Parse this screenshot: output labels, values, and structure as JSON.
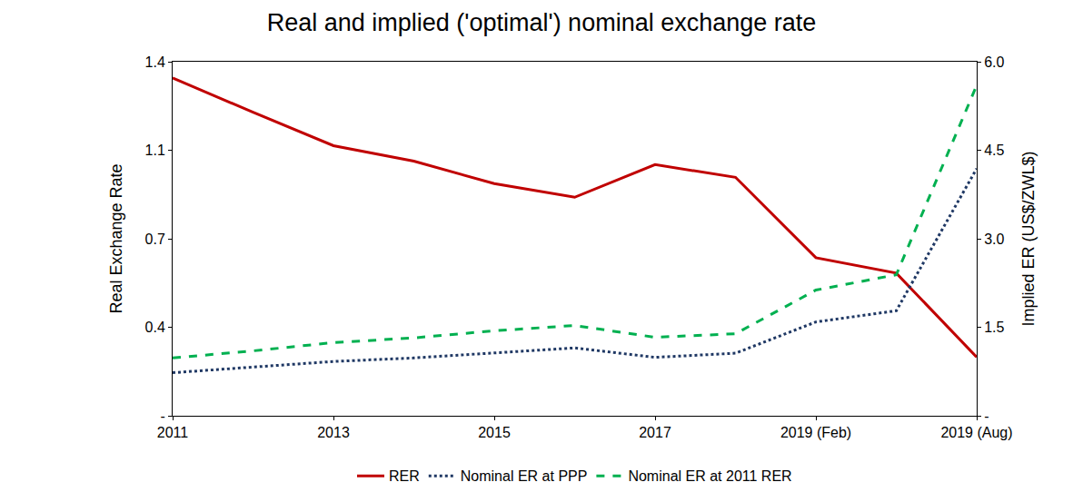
{
  "chart_data": {
    "type": "line",
    "title": "Real and implied ('optimal') nominal exchange rate",
    "y_label": "Real Exchange Rate",
    "y2_label": "Implied ER (US$/ZWL$)",
    "categories": [
      "2011",
      null,
      "2013",
      null,
      "2015",
      null,
      "2017",
      null,
      "2019 (Feb)",
      null,
      "2019 (Aug)"
    ],
    "ylim": [
      0,
      1.4
    ],
    "yticks": [
      {
        "value": 0,
        "label": "-"
      },
      {
        "value": 0.35,
        "label": "0.4"
      },
      {
        "value": 0.7,
        "label": "0.7"
      },
      {
        "value": 1.05,
        "label": "1.1"
      },
      {
        "value": 1.4,
        "label": "1.4"
      }
    ],
    "y2lim": [
      0,
      6
    ],
    "y2ticks": [
      {
        "value": 0,
        "label": "-"
      },
      1.5,
      {
        "value": 3,
        "label": "3.0"
      },
      4.5,
      {
        "value": 6,
        "label": "6.0"
      }
    ],
    "grid": false,
    "legend": "bottom",
    "series": [
      {
        "name": "RER",
        "color": "#c00000",
        "line_style": "solid",
        "values": [
          1.336,
          1.2,
          1.068,
          1.007,
          0.918,
          0.864,
          0.993,
          0.943,
          0.625,
          0.564,
          0.232
        ]
      },
      {
        "name": "Nominal ER at PPP",
        "color": "#1f3864",
        "line_style": "dot",
        "axis": "y2",
        "values": [
          0.73,
          0.83,
          0.92,
          0.98,
          1.07,
          1.15,
          0.99,
          1.06,
          1.59,
          1.78,
          4.19
        ]
      },
      {
        "name": "Nominal ER at 2011 RER",
        "color": "#00b050",
        "line_style": "dash",
        "axis": "y2",
        "values": [
          0.98,
          1.1,
          1.24,
          1.32,
          1.44,
          1.53,
          1.33,
          1.39,
          2.13,
          2.39,
          5.6
        ]
      }
    ]
  }
}
